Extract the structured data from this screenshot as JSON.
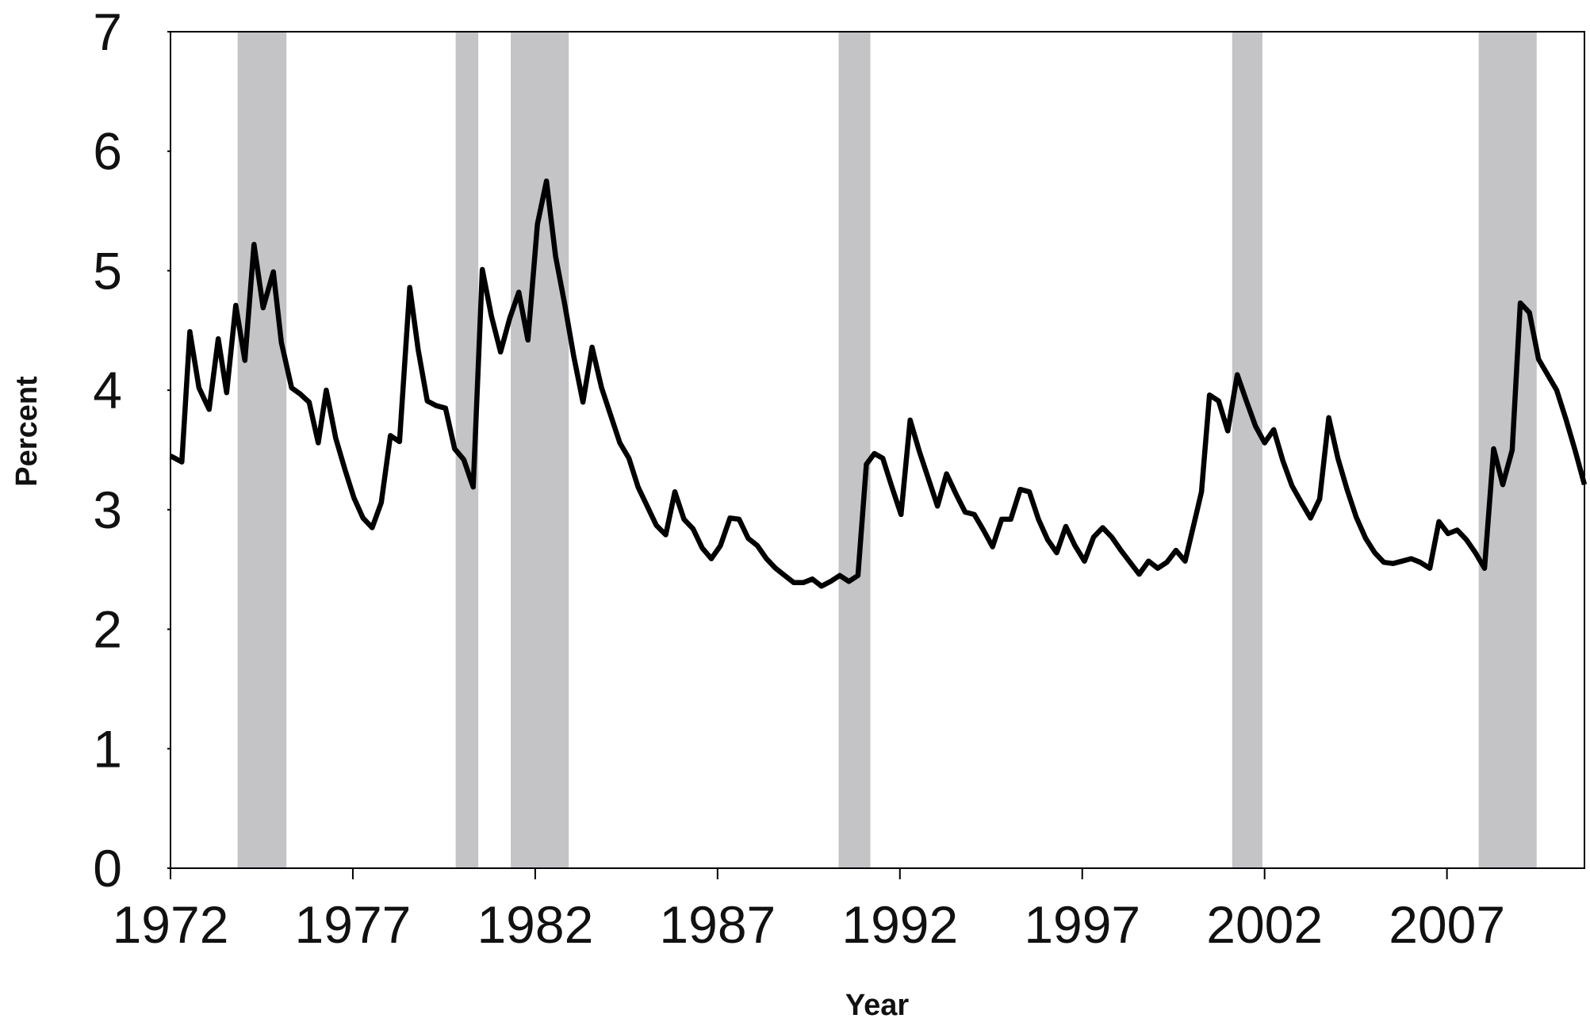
{
  "chart_data": {
    "type": "line",
    "x_label": "Year",
    "y_label": "Percent",
    "color": "#000000",
    "shade_color": "#c4c3c6",
    "xlim": [
      1972,
      2010.77
    ],
    "ylim": [
      0,
      7
    ],
    "xticks": [
      1972,
      1977,
      1982,
      1987,
      1992,
      1997,
      2002,
      2007
    ],
    "yticks": [
      0,
      1,
      2,
      3,
      4,
      5,
      6,
      7
    ],
    "shaded_regions": [
      [
        1973.84,
        1975.18
      ],
      [
        1979.82,
        1980.44
      ],
      [
        1981.33,
        1982.92
      ],
      [
        1990.32,
        1991.19
      ],
      [
        2001.11,
        2001.94
      ],
      [
        2007.87,
        2009.46
      ]
    ],
    "x": [
      1972.0,
      1972.31,
      1972.53,
      1972.78,
      1973.06,
      1973.31,
      1973.54,
      1973.79,
      1974.04,
      1974.29,
      1974.54,
      1974.82,
      1975.04,
      1975.32,
      1975.55,
      1975.8,
      1976.05,
      1976.27,
      1976.53,
      1976.78,
      1977.03,
      1977.28,
      1977.53,
      1977.78,
      1978.03,
      1978.28,
      1978.56,
      1978.79,
      1979.04,
      1979.29,
      1979.54,
      1979.79,
      1980.04,
      1980.3,
      1980.55,
      1980.8,
      1981.05,
      1981.3,
      1981.55,
      1981.8,
      1982.06,
      1982.31,
      1982.56,
      1982.81,
      1983.06,
      1983.31,
      1983.56,
      1983.82,
      1984.07,
      1984.32,
      1984.57,
      1984.82,
      1985.07,
      1985.32,
      1985.58,
      1985.83,
      1986.08,
      1986.33,
      1986.58,
      1986.83,
      1987.08,
      1987.34,
      1987.59,
      1987.84,
      1988.09,
      1988.34,
      1988.59,
      1988.84,
      1989.09,
      1989.35,
      1989.6,
      1989.85,
      1990.1,
      1990.35,
      1990.6,
      1990.85,
      1991.08,
      1991.3,
      1991.53,
      1991.78,
      1992.03,
      1992.28,
      1992.53,
      1992.78,
      1993.03,
      1993.28,
      1993.54,
      1993.79,
      1994.04,
      1994.29,
      1994.54,
      1994.79,
      1995.04,
      1995.3,
      1995.55,
      1995.8,
      1996.05,
      1996.3,
      1996.55,
      1996.8,
      1997.06,
      1997.31,
      1997.56,
      1997.81,
      1998.06,
      1998.31,
      1998.56,
      1998.82,
      1999.07,
      1999.32,
      1999.57,
      1999.82,
      2000.07,
      2000.27,
      2000.49,
      2000.74,
      2000.99,
      2001.25,
      2001.5,
      2001.75,
      2002.0,
      2002.25,
      2002.5,
      2002.75,
      2003.01,
      2003.26,
      2003.51,
      2003.76,
      2004.01,
      2004.26,
      2004.51,
      2004.77,
      2005.02,
      2005.27,
      2005.52,
      2005.77,
      2006.02,
      2006.27,
      2006.53,
      2006.78,
      2007.03,
      2007.28,
      2007.53,
      2007.78,
      2008.03,
      2008.28,
      2008.53,
      2008.79,
      2009.01,
      2009.26,
      2009.51,
      2009.76,
      2010.01,
      2010.27,
      2010.52,
      2010.77
    ],
    "values": [
      3.45,
      3.4,
      4.49,
      4.02,
      3.84,
      4.43,
      3.98,
      4.71,
      4.25,
      5.22,
      4.69,
      4.99,
      4.4,
      4.02,
      3.97,
      3.9,
      3.56,
      4.0,
      3.6,
      3.34,
      3.1,
      2.93,
      2.85,
      3.06,
      3.62,
      3.57,
      4.86,
      4.34,
      3.91,
      3.87,
      3.85,
      3.51,
      3.42,
      3.19,
      5.01,
      4.62,
      4.32,
      4.6,
      4.82,
      4.42,
      5.39,
      5.75,
      5.12,
      4.72,
      4.28,
      3.9,
      4.36,
      4.02,
      3.79,
      3.56,
      3.43,
      3.19,
      3.03,
      2.87,
      2.79,
      3.15,
      2.92,
      2.84,
      2.68,
      2.59,
      2.7,
      2.93,
      2.92,
      2.76,
      2.7,
      2.59,
      2.51,
      2.45,
      2.39,
      2.39,
      2.42,
      2.36,
      2.4,
      2.45,
      2.4,
      2.45,
      3.38,
      3.47,
      3.43,
      3.19,
      2.96,
      3.75,
      3.49,
      3.26,
      3.03,
      3.3,
      3.13,
      2.98,
      2.96,
      2.83,
      2.69,
      2.92,
      2.92,
      3.17,
      3.15,
      2.92,
      2.75,
      2.64,
      2.86,
      2.7,
      2.57,
      2.77,
      2.85,
      2.77,
      2.66,
      2.56,
      2.46,
      2.57,
      2.51,
      2.56,
      2.66,
      2.57,
      2.89,
      3.15,
      3.96,
      3.91,
      3.66,
      4.13,
      3.91,
      3.7,
      3.56,
      3.67,
      3.41,
      3.2,
      3.06,
      2.93,
      3.09,
      3.77,
      3.43,
      3.17,
      2.94,
      2.76,
      2.64,
      2.56,
      2.55,
      2.57,
      2.59,
      2.56,
      2.51,
      2.9,
      2.8,
      2.83,
      2.75,
      2.64,
      2.51,
      3.51,
      3.21,
      3.5,
      4.73,
      4.65,
      4.26,
      4.13,
      4.0,
      3.75,
      3.49,
      3.21
    ]
  }
}
